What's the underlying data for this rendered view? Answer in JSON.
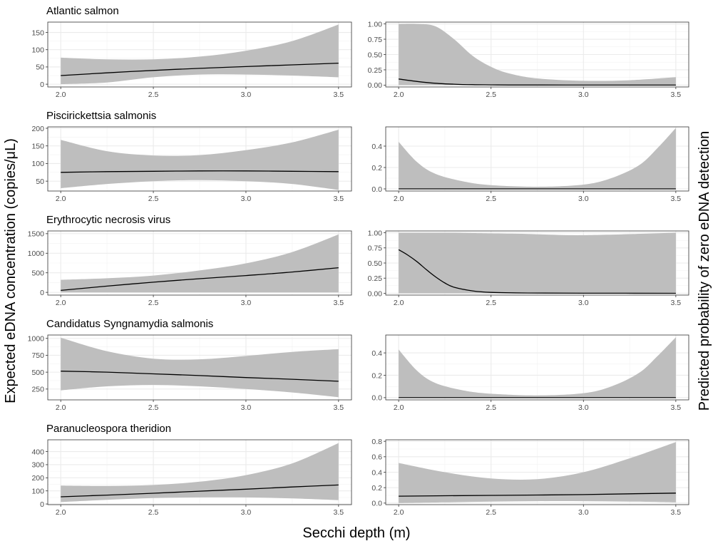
{
  "figure": {
    "y_label_left": "Expected eDNA concentration (copies/μL)",
    "y_label_right": "Predicted probability of zero eDNA detection",
    "x_label": "Secchi depth (m)"
  },
  "chart_data": [
    {
      "row": 0,
      "col": 0,
      "type": "area",
      "title": "Atlantic salmon",
      "xlabel": "",
      "ylabel": "",
      "xlim": [
        1.93,
        3.57
      ],
      "ylim": [
        -8,
        180
      ],
      "xticks": [
        2.0,
        2.5,
        3.0,
        3.5
      ],
      "xtick_labels": [
        "2.0",
        "2.5",
        "3.0",
        "3.5"
      ],
      "yticks": [
        0,
        50,
        100,
        150
      ],
      "ytick_labels": [
        "0",
        "50",
        "100",
        "150"
      ],
      "x": [
        2.0,
        2.25,
        2.5,
        2.75,
        3.0,
        3.25,
        3.5
      ],
      "fit": [
        25,
        33,
        40,
        46,
        51,
        56,
        61
      ],
      "lower": [
        0,
        5,
        20,
        28,
        28,
        25,
        20
      ],
      "upper": [
        77,
        72,
        72,
        80,
        97,
        125,
        173
      ],
      "grid": true,
      "legend": "none"
    },
    {
      "row": 0,
      "col": 1,
      "type": "area",
      "title": "",
      "xlabel": "",
      "ylabel": "",
      "xlim": [
        1.93,
        3.57
      ],
      "ylim": [
        -0.03,
        1.03
      ],
      "xticks": [
        2.0,
        2.5,
        3.0,
        3.5
      ],
      "xtick_labels": [
        "2.0",
        "2.5",
        "3.0",
        "3.5"
      ],
      "yticks": [
        0,
        0.25,
        0.5,
        0.75,
        1.0
      ],
      "ytick_labels": [
        "0.00",
        "0.25",
        "0.50",
        "0.75",
        "1.00"
      ],
      "x": [
        2.0,
        2.1,
        2.2,
        2.3,
        2.4,
        2.5,
        2.6,
        2.75,
        3.0,
        3.25,
        3.5
      ],
      "fit": [
        0.1,
        0.06,
        0.03,
        0.015,
        0.007,
        0.004,
        0.002,
        0.001,
        0.0,
        0.0,
        0.0
      ],
      "lower": [
        0,
        0,
        0,
        0,
        0,
        0,
        0,
        0,
        0,
        0,
        0
      ],
      "upper": [
        1.0,
        1.0,
        0.96,
        0.75,
        0.48,
        0.3,
        0.19,
        0.11,
        0.07,
        0.08,
        0.13
      ],
      "grid": true,
      "legend": "none"
    },
    {
      "row": 1,
      "col": 0,
      "type": "area",
      "title": "Piscirickettsia salmonis",
      "xlabel": "",
      "ylabel": "",
      "xlim": [
        1.93,
        3.57
      ],
      "ylim": [
        22,
        204
      ],
      "xticks": [
        2.0,
        2.5,
        3.0,
        3.5
      ],
      "xtick_labels": [
        "2.0",
        "2.5",
        "3.0",
        "3.5"
      ],
      "yticks": [
        50,
        100,
        150,
        200
      ],
      "ytick_labels": [
        "50",
        "100",
        "150",
        "200"
      ],
      "x": [
        2.0,
        2.25,
        2.5,
        2.75,
        3.0,
        3.25,
        3.5
      ],
      "fit": [
        75,
        77,
        78,
        79,
        79,
        78,
        77
      ],
      "lower": [
        30,
        42,
        50,
        53,
        50,
        42,
        25
      ],
      "upper": [
        167,
        135,
        123,
        124,
        138,
        160,
        196
      ],
      "grid": true,
      "legend": "none"
    },
    {
      "row": 1,
      "col": 1,
      "type": "area",
      "title": "",
      "xlabel": "",
      "ylabel": "",
      "xlim": [
        1.93,
        3.57
      ],
      "ylim": [
        -0.02,
        0.58
      ],
      "xticks": [
        2.0,
        2.5,
        3.0,
        3.5
      ],
      "xtick_labels": [
        "2.0",
        "2.5",
        "3.0",
        "3.5"
      ],
      "yticks": [
        0.0,
        0.2,
        0.4
      ],
      "ytick_labels": [
        "0.0",
        "0.2",
        "0.4"
      ],
      "x": [
        2.0,
        2.1,
        2.2,
        2.35,
        2.5,
        2.75,
        3.0,
        3.15,
        3.3,
        3.4,
        3.5
      ],
      "fit": [
        0,
        0,
        0,
        0,
        0,
        0,
        0,
        0,
        0,
        0,
        0
      ],
      "lower": [
        0,
        0,
        0,
        0,
        0,
        0,
        0,
        0,
        0,
        0,
        0
      ],
      "upper": [
        0.44,
        0.25,
        0.14,
        0.07,
        0.035,
        0.02,
        0.04,
        0.1,
        0.22,
        0.38,
        0.57
      ],
      "grid": true,
      "legend": "none"
    },
    {
      "row": 2,
      "col": 0,
      "type": "area",
      "title": "Erythrocytic necrosis virus",
      "xlabel": "",
      "ylabel": "",
      "xlim": [
        1.93,
        3.57
      ],
      "ylim": [
        -70,
        1570
      ],
      "xticks": [
        2.0,
        2.5,
        3.0,
        3.5
      ],
      "xtick_labels": [
        "2.0",
        "2.5",
        "3.0",
        "3.5"
      ],
      "yticks": [
        0,
        500,
        1000,
        1500
      ],
      "ytick_labels": [
        "0",
        "500",
        "1000",
        "1500"
      ],
      "x": [
        2.0,
        2.25,
        2.5,
        2.75,
        3.0,
        3.25,
        3.5
      ],
      "fit": [
        50,
        160,
        260,
        350,
        430,
        520,
        630
      ],
      "lower": [
        0,
        0,
        0,
        0,
        0,
        0,
        0
      ],
      "upper": [
        320,
        360,
        430,
        560,
        740,
        1030,
        1480
      ],
      "grid": true,
      "legend": "none"
    },
    {
      "row": 2,
      "col": 1,
      "type": "area",
      "title": "",
      "xlabel": "",
      "ylabel": "",
      "xlim": [
        1.93,
        3.57
      ],
      "ylim": [
        -0.03,
        1.03
      ],
      "xticks": [
        2.0,
        2.5,
        3.0,
        3.5
      ],
      "xtick_labels": [
        "2.0",
        "2.5",
        "3.0",
        "3.5"
      ],
      "yticks": [
        0,
        0.25,
        0.5,
        0.75,
        1.0
      ],
      "ytick_labels": [
        "0.00",
        "0.25",
        "0.50",
        "0.75",
        "1.00"
      ],
      "x": [
        2.0,
        2.05,
        2.1,
        2.15,
        2.2,
        2.25,
        2.3,
        2.4,
        2.5,
        2.7,
        3.0,
        3.5
      ],
      "fit": [
        0.72,
        0.63,
        0.52,
        0.39,
        0.27,
        0.17,
        0.1,
        0.04,
        0.015,
        0.004,
        0.001,
        0.0
      ],
      "lower": [
        0,
        0,
        0,
        0,
        0,
        0,
        0,
        0,
        0,
        0,
        0,
        0
      ],
      "upper": [
        1.0,
        1.0,
        1.0,
        1.0,
        1.0,
        1.0,
        1.0,
        0.995,
        0.99,
        0.98,
        0.96,
        1.0
      ],
      "grid": true,
      "legend": "none"
    },
    {
      "row": 3,
      "col": 0,
      "type": "area",
      "title": "Candidatus Syngnamydia salmonis",
      "xlabel": "",
      "ylabel": "",
      "xlim": [
        1.93,
        3.57
      ],
      "ylim": [
        90,
        1050
      ],
      "xticks": [
        2.0,
        2.5,
        3.0,
        3.5
      ],
      "xtick_labels": [
        "2.0",
        "2.5",
        "3.0",
        "3.5"
      ],
      "yticks": [
        250,
        500,
        750,
        1000
      ],
      "ytick_labels": [
        "250",
        "500",
        "750",
        "1000"
      ],
      "x": [
        2.0,
        2.25,
        2.5,
        2.75,
        3.0,
        3.25,
        3.5
      ],
      "fit": [
        515,
        500,
        475,
        450,
        420,
        395,
        365
      ],
      "lower": [
        230,
        290,
        310,
        290,
        250,
        200,
        130
      ],
      "upper": [
        1010,
        810,
        700,
        690,
        740,
        800,
        840
      ],
      "grid": true,
      "legend": "none"
    },
    {
      "row": 3,
      "col": 1,
      "type": "area",
      "title": "",
      "xlabel": "",
      "ylabel": "",
      "xlim": [
        1.93,
        3.57
      ],
      "ylim": [
        -0.02,
        0.56
      ],
      "xticks": [
        2.0,
        2.5,
        3.0,
        3.5
      ],
      "xtick_labels": [
        "2.0",
        "2.5",
        "3.0",
        "3.5"
      ],
      "yticks": [
        0.0,
        0.2,
        0.4
      ],
      "ytick_labels": [
        "0.0",
        "0.2",
        "0.4"
      ],
      "x": [
        2.0,
        2.1,
        2.2,
        2.35,
        2.5,
        2.75,
        3.0,
        3.15,
        3.3,
        3.4,
        3.5
      ],
      "fit": [
        0,
        0,
        0,
        0,
        0,
        0,
        0,
        0,
        0,
        0,
        0
      ],
      "lower": [
        0,
        0,
        0,
        0,
        0,
        0,
        0,
        0,
        0,
        0,
        0
      ],
      "upper": [
        0.43,
        0.24,
        0.13,
        0.065,
        0.035,
        0.02,
        0.04,
        0.1,
        0.22,
        0.37,
        0.54
      ],
      "grid": true,
      "legend": "none"
    },
    {
      "row": 4,
      "col": 0,
      "type": "area",
      "title": "Paranucleospora theridion",
      "xlabel": "",
      "ylabel": "",
      "xlim": [
        1.93,
        3.57
      ],
      "ylim": [
        -5,
        490
      ],
      "xticks": [
        2.0,
        2.5,
        3.0,
        3.5
      ],
      "xtick_labels": [
        "2.0",
        "2.5",
        "3.0",
        "3.5"
      ],
      "yticks": [
        0,
        100,
        200,
        300,
        400
      ],
      "ytick_labels": [
        "0",
        "100",
        "200",
        "300",
        "400"
      ],
      "x": [
        2.0,
        2.25,
        2.5,
        2.75,
        3.0,
        3.25,
        3.5
      ],
      "fit": [
        55,
        68,
        82,
        98,
        113,
        130,
        145
      ],
      "lower": [
        15,
        32,
        45,
        50,
        50,
        43,
        30
      ],
      "upper": [
        140,
        138,
        145,
        170,
        220,
        310,
        465
      ],
      "grid": true,
      "legend": "none"
    },
    {
      "row": 4,
      "col": 1,
      "type": "area",
      "title": "",
      "xlabel": "",
      "ylabel": "",
      "xlim": [
        1.93,
        3.57
      ],
      "ylim": [
        -0.02,
        0.82
      ],
      "xticks": [
        2.0,
        2.5,
        3.0,
        3.5
      ],
      "xtick_labels": [
        "2.0",
        "2.5",
        "3.0",
        "3.5"
      ],
      "yticks": [
        0.0,
        0.2,
        0.4,
        0.6,
        0.8
      ],
      "ytick_labels": [
        "0.0",
        "0.2",
        "0.4",
        "0.6",
        "0.8"
      ],
      "x": [
        2.0,
        2.25,
        2.5,
        2.75,
        3.0,
        3.25,
        3.5
      ],
      "fit": [
        0.09,
        0.095,
        0.1,
        0.105,
        0.11,
        0.12,
        0.13
      ],
      "lower": [
        0.0,
        0.01,
        0.02,
        0.025,
        0.025,
        0.02,
        0.01
      ],
      "upper": [
        0.52,
        0.4,
        0.32,
        0.31,
        0.4,
        0.58,
        0.79
      ],
      "grid": true,
      "legend": "none"
    }
  ]
}
